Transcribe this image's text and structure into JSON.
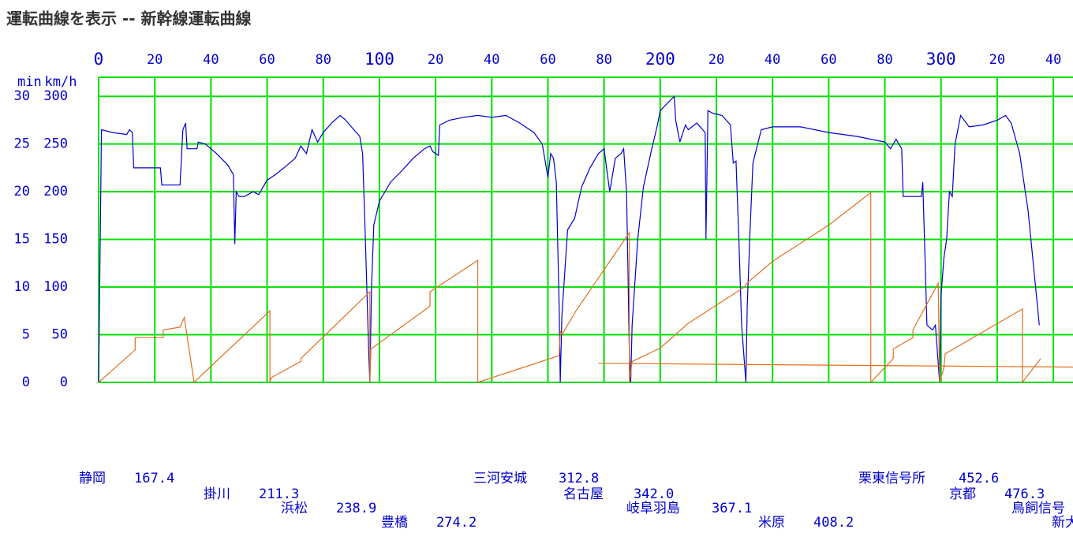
{
  "chart_data": {
    "type": "line",
    "title": "運転曲線を表示 -- 新幹線運転曲線",
    "y_label": "km/h",
    "y2_label": "min",
    "xlim": [
      0,
      347
    ],
    "ylim": [
      0,
      320
    ],
    "y2lim": [
      0,
      32
    ],
    "xticks": [
      0,
      20,
      40,
      60,
      80,
      100,
      {
        "value": 120,
        "label": "20"
      },
      {
        "value": 140,
        "label": "40"
      },
      {
        "value": 160,
        "label": "60"
      },
      {
        "value": 180,
        "label": "80"
      },
      200,
      {
        "value": 220,
        "label": "20"
      },
      {
        "value": 240,
        "label": "40"
      },
      {
        "value": 260,
        "label": "60"
      },
      {
        "value": 280,
        "label": "80"
      },
      300,
      {
        "value": 320,
        "label": "20"
      },
      {
        "value": 340,
        "label": "40"
      }
    ],
    "yticks": [
      0,
      50,
      100,
      150,
      200,
      250,
      300
    ],
    "y2ticks": [
      0,
      5,
      10,
      15,
      20,
      25,
      30
    ],
    "grid": true,
    "grid_color": "#00e000",
    "series": [
      {
        "color": "#0000cc",
        "x": [
          0,
          1,
          5,
          10,
          11,
          12,
          12.5,
          22,
          22.5,
          27,
          29,
          30,
          31,
          31.5,
          35,
          35.5,
          38,
          42,
          46,
          48,
          48.5,
          49,
          50,
          52,
          55,
          57,
          60,
          63,
          66,
          70,
          72,
          74,
          76,
          78,
          80,
          83,
          86,
          88,
          90,
          93,
          94,
          95,
          96.2,
          96.6,
          97.2,
          98,
          100,
          104,
          108,
          112,
          116,
          118,
          119,
          121,
          121.5,
          125,
          130,
          135,
          140,
          145,
          150,
          155,
          158,
          160,
          161,
          162,
          163,
          164,
          164.4,
          165,
          167,
          169.5,
          172,
          175,
          178,
          180,
          182,
          184,
          186,
          187,
          188,
          188.5,
          189,
          189.5,
          190,
          192,
          194,
          197,
          199,
          200,
          205,
          205.5,
          207,
          209,
          210,
          213,
          216,
          216.3,
          217,
          219,
          222,
          225,
          226,
          227,
          228,
          229,
          230,
          230.5,
          231,
          232,
          233,
          236,
          240,
          250,
          260,
          270,
          280,
          282,
          284,
          286,
          286.5,
          293,
          293.5,
          294,
          295,
          297,
          298,
          299,
          299.5,
          300,
          301,
          302,
          303,
          304,
          305,
          307,
          310,
          315,
          320,
          323,
          325,
          328,
          331,
          335
        ],
        "values": [
          0,
          265,
          262,
          260,
          265,
          262,
          225,
          225,
          207,
          207,
          207,
          265,
          272,
          245,
          245,
          252,
          250,
          240,
          228,
          218,
          145,
          200,
          195,
          195,
          200,
          197,
          212,
          218,
          225,
          235,
          248,
          240,
          265,
          252,
          262,
          272,
          280,
          275,
          268,
          258,
          240,
          150,
          30,
          0,
          100,
          165,
          190,
          210,
          222,
          235,
          245,
          248,
          242,
          238,
          270,
          275,
          278,
          280,
          278,
          280,
          272,
          262,
          250,
          215,
          240,
          235,
          210,
          80,
          0,
          70,
          160,
          172,
          205,
          225,
          240,
          245,
          200,
          235,
          240,
          245,
          200,
          120,
          30,
          0,
          60,
          150,
          205,
          245,
          270,
          285,
          300,
          275,
          252,
          270,
          265,
          272,
          262,
          150,
          285,
          282,
          280,
          270,
          230,
          232,
          150,
          60,
          20,
          0,
          80,
          160,
          230,
          265,
          268,
          268,
          262,
          258,
          252,
          245,
          255,
          245,
          195,
          195,
          210,
          160,
          60,
          55,
          60,
          20,
          0,
          90,
          130,
          150,
          200,
          195,
          250,
          280,
          268,
          270,
          275,
          280,
          272,
          240,
          180,
          60
        ]
      },
      {
        "color": "#e07020",
        "axis": "y2",
        "x": [
          0,
          13,
          13,
          23,
          23,
          29,
          30.5,
          34,
          35,
          61,
          61,
          61.5,
          72,
          72,
          96.6,
          96.6,
          97,
          118,
          118,
          135,
          135,
          164,
          164.4,
          165,
          170,
          189,
          189,
          190,
          200,
          210,
          230,
          230.5,
          240,
          260,
          275,
          275,
          283,
          283,
          290,
          290,
          299,
          299.5,
          301,
          301.5,
          329,
          329,
          335.5
        ],
        "values": [
          0,
          3.4,
          4.7,
          4.7,
          5.5,
          5.8,
          6.8,
          0,
          0.3,
          7.5,
          0,
          0.5,
          2.2,
          2.5,
          9.5,
          0,
          3.5,
          8,
          9.5,
          12.8,
          0,
          2.8,
          5.4,
          5,
          7.5,
          15.7,
          0,
          2.2,
          3.6,
          6.2,
          10,
          10.3,
          12.7,
          16.5,
          19.9,
          0,
          2.5,
          3.5,
          4.7,
          5.5,
          10.4,
          0,
          1.5,
          3,
          7.7,
          0,
          2.5
        ]
      },
      {
        "color": "#e07020",
        "axis": "y2",
        "x": [
          178,
          347
        ],
        "values": [
          2.0,
          1.6
        ]
      }
    ],
    "stations": [
      {
        "name": "静岡",
        "km": "167.4"
      },
      {
        "name": "掛川",
        "km": "211.3"
      },
      {
        "name": "浜松",
        "km": "238.9"
      },
      {
        "name": "豊橋",
        "km": "274.2"
      },
      {
        "name": "三河安城",
        "km": "312.8"
      },
      {
        "name": "名古屋",
        "km": "342.0"
      },
      {
        "name": "岐阜羽島",
        "km": "367.1"
      },
      {
        "name": "米原",
        "km": "408.2"
      },
      {
        "name": "栗東信号所",
        "km": "452.6"
      },
      {
        "name": "京都",
        "km": "476.3"
      },
      {
        "name": "鳥飼信号"
      },
      {
        "name": "新大"
      }
    ]
  }
}
